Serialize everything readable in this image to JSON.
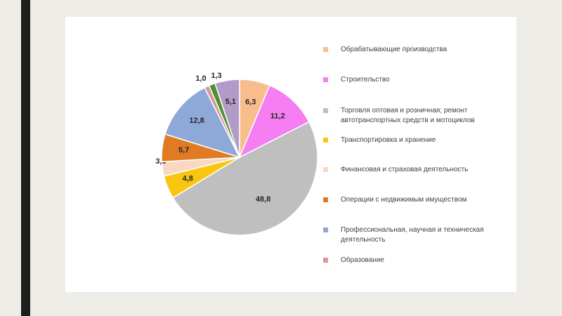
{
  "chart_data": {
    "type": "pie",
    "slices": [
      {
        "label": "Обрабатывающие производства",
        "value": 6.3,
        "value_text": "6,3",
        "color": "#f8bd8c"
      },
      {
        "label": "Строительство",
        "value": 11.2,
        "value_text": "11,2",
        "color": "#f47ef2"
      },
      {
        "label": "Торговля оптовая и розничная; ремонт\nавтотранспортных средств  и мотоциклов",
        "value": 48.8,
        "value_text": "48,8",
        "color": "#bfbfbf"
      },
      {
        "label": "Транспортировка и хранение",
        "value": 4.8,
        "value_text": "4,8",
        "color": "#f8c611"
      },
      {
        "label": "Финансовая и страховая деятельность",
        "value": 3.0,
        "value_text": "3,0",
        "color": "#f8d8c0"
      },
      {
        "label": "Операции с недвижимым имуществом",
        "value": 5.7,
        "value_text": "5,7",
        "color": "#e07b24"
      },
      {
        "label": "Профессиональная, научная и техническая\nдеятельность",
        "value": 12.8,
        "value_text": "12,8",
        "color": "#8ea9d8"
      },
      {
        "label": "Образование",
        "value": 1.0,
        "value_text": "1,0",
        "color": "#d99696"
      },
      {
        "label": "",
        "value": 1.3,
        "value_text": "1,3",
        "color": "#4f8f33"
      },
      {
        "label": "",
        "value": 5.1,
        "value_text": "5,1",
        "color": "#b39bc8"
      }
    ],
    "legend_position": "right"
  }
}
